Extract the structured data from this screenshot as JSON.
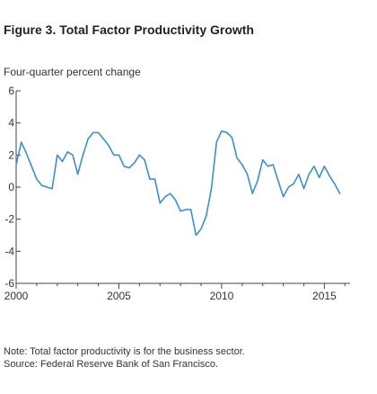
{
  "figure": {
    "title": "Figure 3. Total Factor Productivity Growth",
    "y_unit_label": "Four-quarter percent change"
  },
  "notes": {
    "note": "Note: Total factor productivity is for the business sector.",
    "source": "Source: Federal Reserve Bank of San Francisco."
  },
  "colors": {
    "line": "#3b8fd0",
    "axis": "#444444",
    "tick_text": "#333333"
  },
  "chart_data": {
    "type": "line",
    "title": "Figure 3. Total Factor Productivity Growth",
    "xlabel": "",
    "ylabel": "Four-quarter percent change",
    "xlim": [
      2000,
      2016.25
    ],
    "ylim": [
      -6,
      6
    ],
    "x_ticks": [
      2000,
      2005,
      2010,
      2015
    ],
    "x_tick_labels": [
      "2000",
      "2005",
      "2010",
      "2015"
    ],
    "y_ticks": [
      -6,
      -4,
      -2,
      0,
      2,
      4,
      6
    ],
    "y_tick_labels": [
      "-6",
      "-4",
      "-2",
      "0",
      "2",
      "4",
      "6"
    ],
    "grid": false,
    "series": [
      {
        "frequency": "quarterly",
        "x": [
          2000.0,
          2000.25,
          2000.5,
          2000.75,
          2001.0,
          2001.25,
          2001.5,
          2001.75,
          2002.0,
          2002.25,
          2002.5,
          2002.75,
          2003.0,
          2003.25,
          2003.5,
          2003.75,
          2004.0,
          2004.25,
          2004.5,
          2004.75,
          2005.0,
          2005.25,
          2005.5,
          2005.75,
          2006.0,
          2006.25,
          2006.5,
          2006.75,
          2007.0,
          2007.25,
          2007.5,
          2007.75,
          2008.0,
          2008.25,
          2008.5,
          2008.75,
          2009.0,
          2009.25,
          2009.5,
          2009.75,
          2010.0,
          2010.25,
          2010.5,
          2010.75,
          2011.0,
          2011.25,
          2011.5,
          2011.75,
          2012.0,
          2012.25,
          2012.5,
          2012.75,
          2013.0,
          2013.25,
          2013.5,
          2013.75,
          2014.0,
          2014.25,
          2014.5,
          2014.75,
          2015.0,
          2015.25,
          2015.5,
          2015.75
        ],
        "values": [
          1.4,
          2.8,
          2.1,
          1.3,
          0.5,
          0.1,
          0.0,
          -0.1,
          2.0,
          1.6,
          2.2,
          2.0,
          0.8,
          2.0,
          3.0,
          3.4,
          3.4,
          3.0,
          2.6,
          2.0,
          2.0,
          1.3,
          1.2,
          1.5,
          2.0,
          1.7,
          0.5,
          0.5,
          -1.0,
          -0.6,
          -0.4,
          -0.8,
          -1.5,
          -1.4,
          -1.4,
          -3.0,
          -2.6,
          -1.8,
          -0.1,
          2.8,
          3.5,
          3.4,
          3.1,
          1.8,
          1.4,
          0.8,
          -0.4,
          0.4,
          1.7,
          1.3,
          1.4,
          0.4,
          -0.6,
          0.0,
          0.2,
          0.8,
          -0.1,
          0.8,
          1.3,
          0.6,
          1.3,
          0.7,
          0.2,
          -0.4
        ]
      }
    ]
  }
}
